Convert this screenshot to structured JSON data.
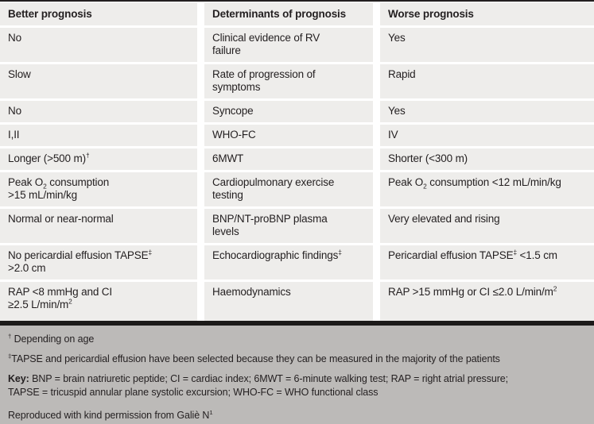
{
  "colors": {
    "row_bg": "#eeedeb",
    "gap": "#ffffff",
    "footer_bg": "#bcbab8",
    "divider_bar": "#1c1a19",
    "text": "#231f20"
  },
  "table": {
    "columns": [
      "Better prognosis",
      "Determinants of prognosis",
      "Worse prognosis"
    ],
    "rows": [
      {
        "better": [
          {
            "t": "No"
          }
        ],
        "determinant": [
          {
            "t": "Clinical evidence of RV"
          },
          {
            "br": true
          },
          {
            "t": "failure"
          }
        ],
        "worse": [
          {
            "t": "Yes"
          }
        ]
      },
      {
        "better": [
          {
            "t": "Slow"
          }
        ],
        "determinant": [
          {
            "t": "Rate of progression of"
          },
          {
            "br": true
          },
          {
            "t": "symptoms"
          }
        ],
        "worse": [
          {
            "t": "Rapid"
          }
        ]
      },
      {
        "better": [
          {
            "t": "No"
          }
        ],
        "determinant": [
          {
            "t": "Syncope"
          }
        ],
        "worse": [
          {
            "t": "Yes"
          }
        ]
      },
      {
        "better": [
          {
            "t": "I,II"
          }
        ],
        "determinant": [
          {
            "t": "WHO-FC"
          }
        ],
        "worse": [
          {
            "t": "IV"
          }
        ]
      },
      {
        "better": [
          {
            "t": "Longer (>500 m)"
          },
          {
            "t": "†",
            "s": "sup"
          }
        ],
        "determinant": [
          {
            "t": "6MWT"
          }
        ],
        "worse": [
          {
            "t": "Shorter (<300 m)"
          }
        ]
      },
      {
        "better": [
          {
            "t": "Peak O"
          },
          {
            "t": "2",
            "s": "sub"
          },
          {
            "t": " consumption"
          },
          {
            "br": true
          },
          {
            "t": ">15 mL/min/kg"
          }
        ],
        "determinant": [
          {
            "t": "Cardiopulmonary exercise"
          },
          {
            "br": true
          },
          {
            "t": "testing"
          }
        ],
        "worse": [
          {
            "t": "Peak O"
          },
          {
            "t": "2",
            "s": "sub"
          },
          {
            "t": " consumption <12 mL/min/kg"
          }
        ]
      },
      {
        "better": [
          {
            "t": "Normal or near-normal"
          }
        ],
        "determinant": [
          {
            "t": "BNP/NT-proBNP plasma"
          },
          {
            "br": true
          },
          {
            "t": "levels"
          }
        ],
        "worse": [
          {
            "t": "Very elevated and rising"
          }
        ]
      },
      {
        "better": [
          {
            "t": "No pericardial effusion TAPSE"
          },
          {
            "t": "‡",
            "s": "sup"
          },
          {
            "br": true
          },
          {
            "t": ">2.0 cm"
          }
        ],
        "determinant": [
          {
            "t": "Echocardiographic findings"
          },
          {
            "t": "‡",
            "s": "sup"
          }
        ],
        "worse": [
          {
            "t": "Pericardial effusion TAPSE"
          },
          {
            "t": "‡",
            "s": "sup"
          },
          {
            "t": " <1.5 cm"
          }
        ]
      },
      {
        "better": [
          {
            "t": "RAP <8 mmHg and CI"
          },
          {
            "br": true
          },
          {
            "t": "≥2.5 L/min/m"
          },
          {
            "t": "2",
            "s": "sup"
          }
        ],
        "determinant": [
          {
            "t": "Haemodynamics"
          }
        ],
        "worse": [
          {
            "t": "RAP >15 mmHg or CI ≤2.0 L/min/m"
          },
          {
            "t": "2",
            "s": "sup"
          }
        ]
      }
    ]
  },
  "footnotes": {
    "lines": [
      {
        "name": "footnote-dagger",
        "segs": [
          {
            "t": "†",
            "s": "sup"
          },
          {
            "t": " Depending on age"
          }
        ]
      },
      {
        "name": "footnote-double-dagger",
        "segs": [
          {
            "t": "‡",
            "s": "sup"
          },
          {
            "t": "TAPSE and pericardial effusion have been selected because they can be measured in the majority of the patients"
          }
        ]
      },
      {
        "name": "key-legend",
        "segs": [
          {
            "t": "Key:",
            "s": "bold"
          },
          {
            "t": " BNP = brain natriuretic peptide; CI = cardiac index; 6MWT = 6-minute walking test; RAP = right atrial pressure;"
          },
          {
            "br": true
          },
          {
            "t": "TAPSE = tricuspid annular plane systolic excursion; WHO-FC = WHO functional class"
          }
        ]
      },
      {
        "name": "attribution",
        "segs": [
          {
            "t": "Reproduced with kind permission from Galiè N"
          },
          {
            "t": "1",
            "s": "sup"
          }
        ]
      }
    ]
  }
}
